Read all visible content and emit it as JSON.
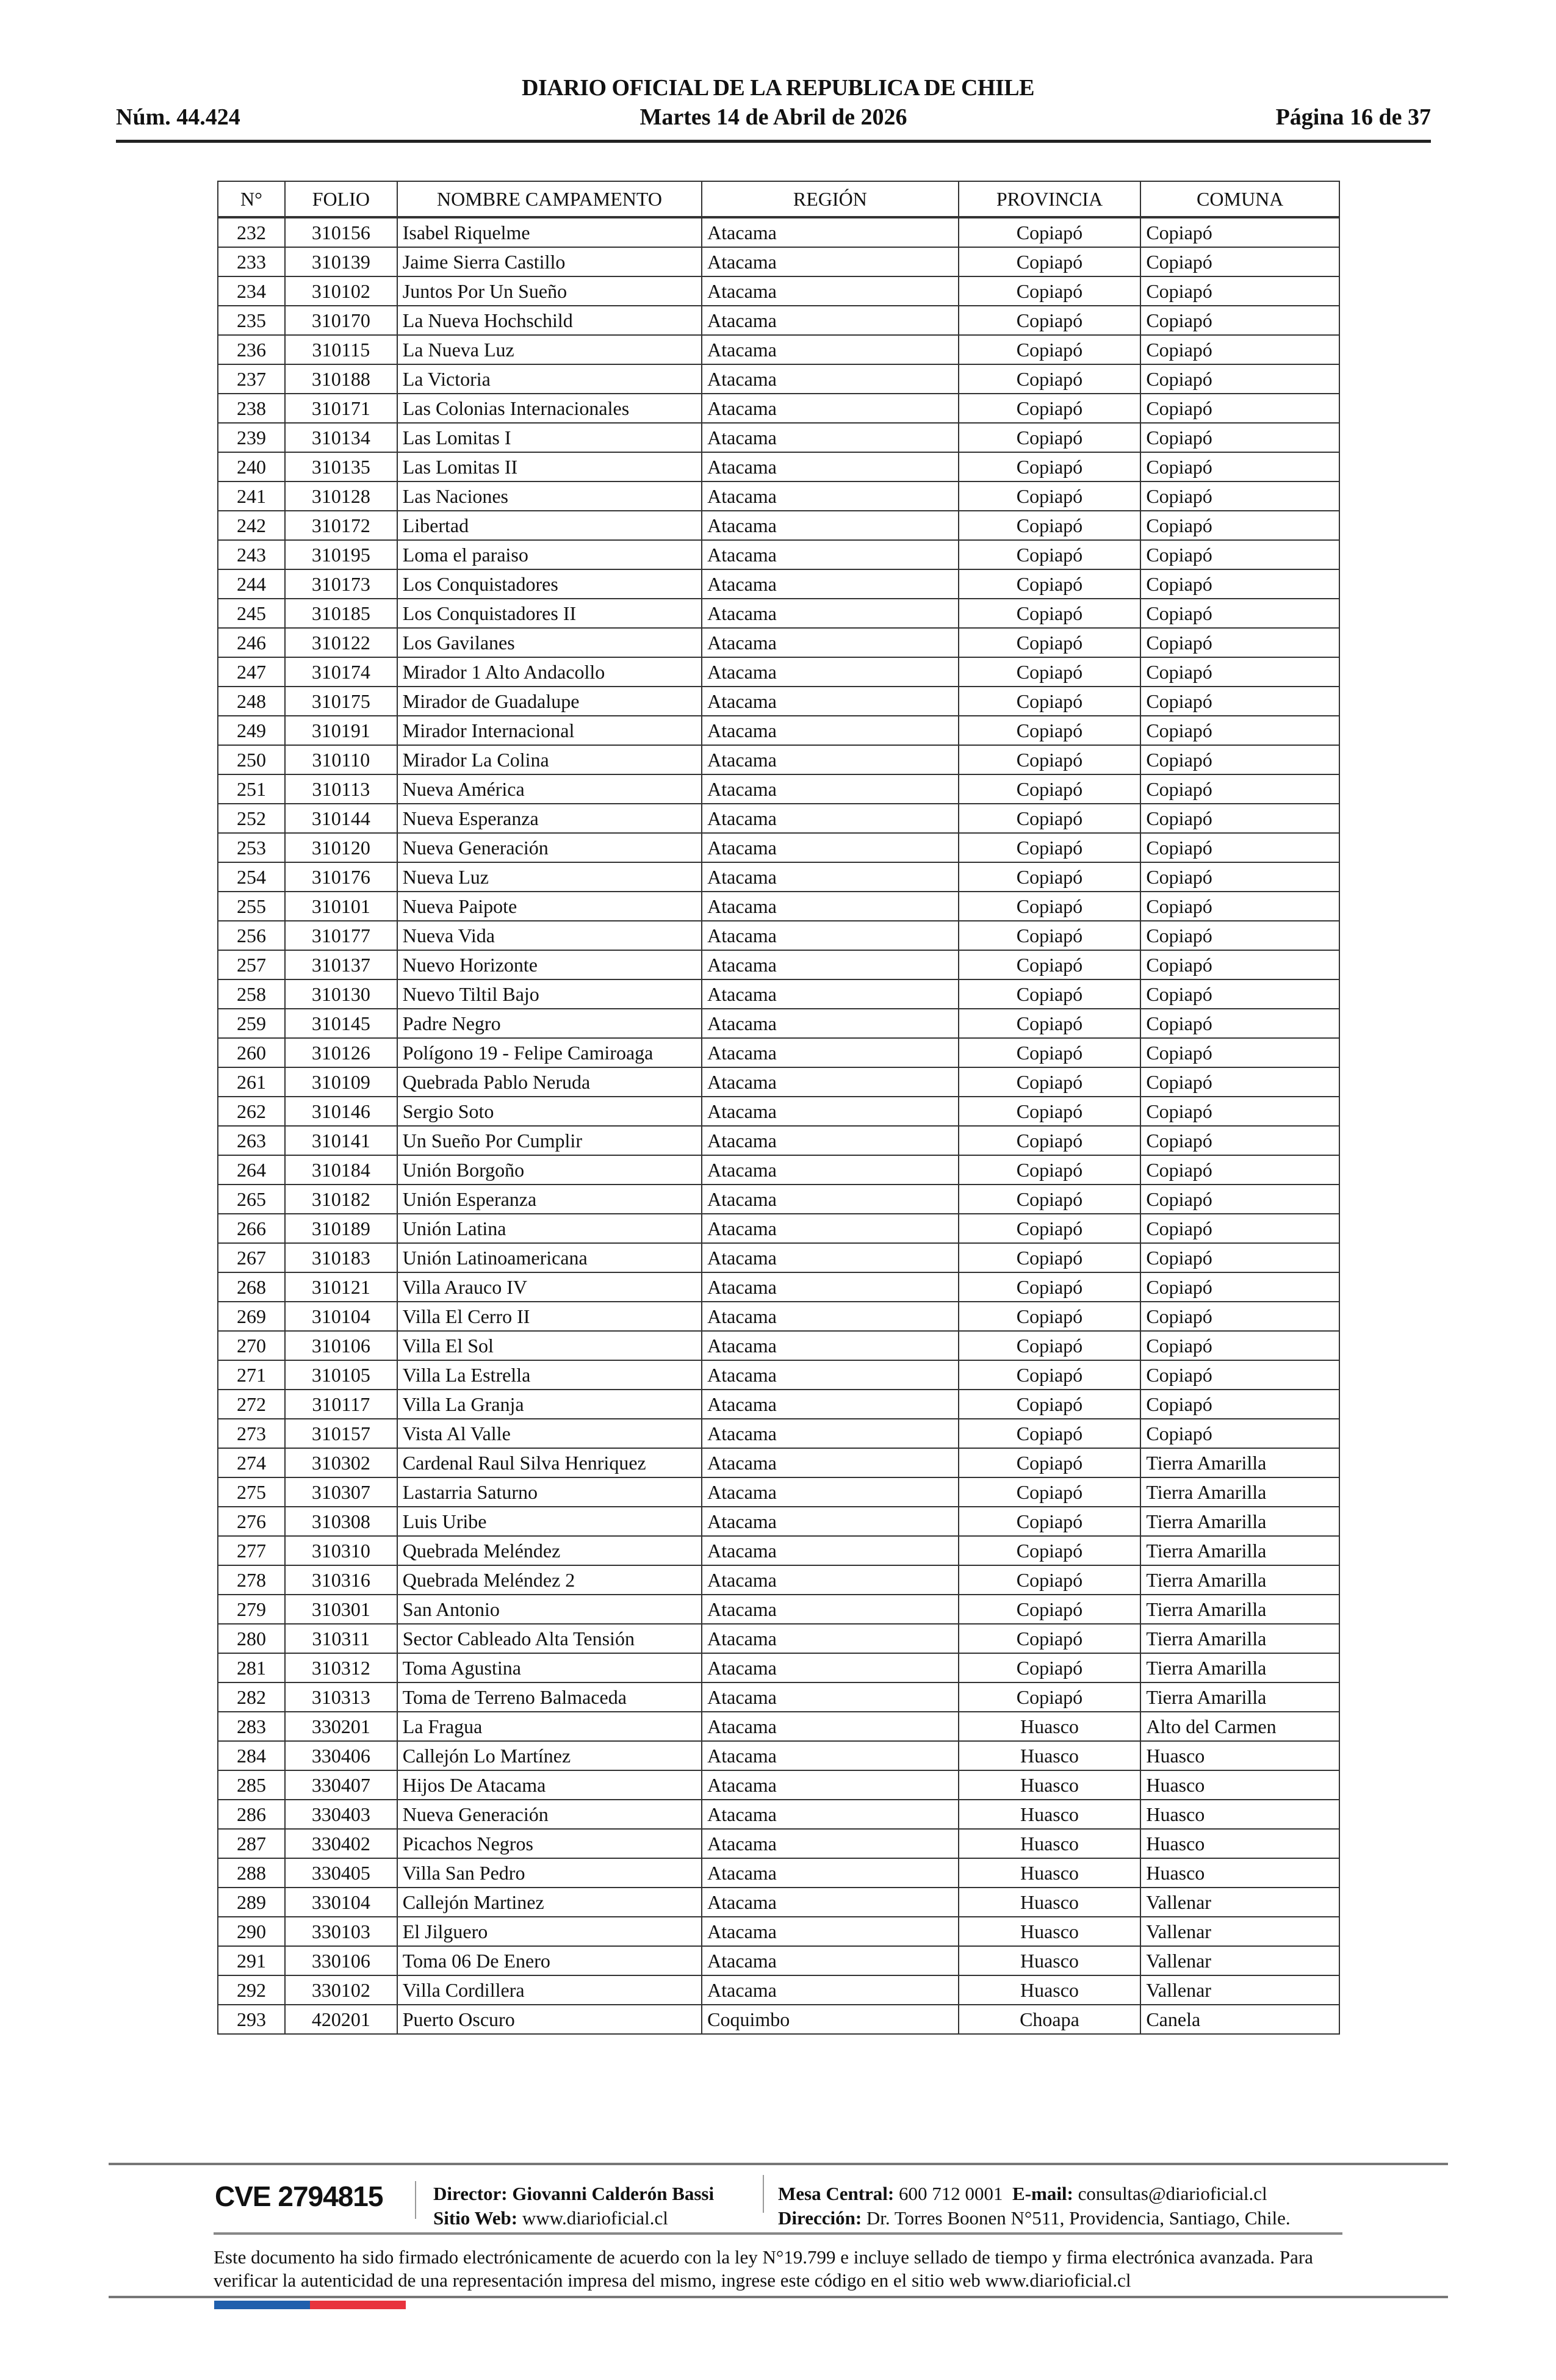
{
  "header": {
    "title": "DIARIO OFICIAL DE LA REPUBLICA DE CHILE",
    "issue": "Núm. 44.424",
    "date": "Martes 14 de Abril de 2026",
    "page": "Página 16 de 37"
  },
  "table": {
    "columns": [
      "N°",
      "FOLIO",
      "NOMBRE CAMPAMENTO",
      "REGIÓN",
      "PROVINCIA",
      "COMUNA"
    ],
    "rows": [
      [
        "232",
        "310156",
        "Isabel Riquelme",
        "Atacama",
        "Copiapó",
        "Copiapó"
      ],
      [
        "233",
        "310139",
        "Jaime Sierra Castillo",
        "Atacama",
        "Copiapó",
        "Copiapó"
      ],
      [
        "234",
        "310102",
        "Juntos Por Un Sueño",
        "Atacama",
        "Copiapó",
        "Copiapó"
      ],
      [
        "235",
        "310170",
        "La Nueva Hochschild",
        "Atacama",
        "Copiapó",
        "Copiapó"
      ],
      [
        "236",
        "310115",
        "La Nueva Luz",
        "Atacama",
        "Copiapó",
        "Copiapó"
      ],
      [
        "237",
        "310188",
        "La Victoria",
        "Atacama",
        "Copiapó",
        "Copiapó"
      ],
      [
        "238",
        "310171",
        "Las Colonias Internacionales",
        "Atacama",
        "Copiapó",
        "Copiapó"
      ],
      [
        "239",
        "310134",
        "Las Lomitas I",
        "Atacama",
        "Copiapó",
        "Copiapó"
      ],
      [
        "240",
        "310135",
        "Las Lomitas II",
        "Atacama",
        "Copiapó",
        "Copiapó"
      ],
      [
        "241",
        "310128",
        "Las Naciones",
        "Atacama",
        "Copiapó",
        "Copiapó"
      ],
      [
        "242",
        "310172",
        "Libertad",
        "Atacama",
        "Copiapó",
        "Copiapó"
      ],
      [
        "243",
        "310195",
        "Loma el paraiso",
        "Atacama",
        "Copiapó",
        "Copiapó"
      ],
      [
        "244",
        "310173",
        "Los Conquistadores",
        "Atacama",
        "Copiapó",
        "Copiapó"
      ],
      [
        "245",
        "310185",
        "Los Conquistadores II",
        "Atacama",
        "Copiapó",
        "Copiapó"
      ],
      [
        "246",
        "310122",
        "Los Gavilanes",
        "Atacama",
        "Copiapó",
        "Copiapó"
      ],
      [
        "247",
        "310174",
        "Mirador 1 Alto Andacollo",
        "Atacama",
        "Copiapó",
        "Copiapó"
      ],
      [
        "248",
        "310175",
        "Mirador de Guadalupe",
        "Atacama",
        "Copiapó",
        "Copiapó"
      ],
      [
        "249",
        "310191",
        "Mirador Internacional",
        "Atacama",
        "Copiapó",
        "Copiapó"
      ],
      [
        "250",
        "310110",
        "Mirador La Colina",
        "Atacama",
        "Copiapó",
        "Copiapó"
      ],
      [
        "251",
        "310113",
        "Nueva América",
        "Atacama",
        "Copiapó",
        "Copiapó"
      ],
      [
        "252",
        "310144",
        "Nueva Esperanza",
        "Atacama",
        "Copiapó",
        "Copiapó"
      ],
      [
        "253",
        "310120",
        "Nueva Generación",
        "Atacama",
        "Copiapó",
        "Copiapó"
      ],
      [
        "254",
        "310176",
        "Nueva Luz",
        "Atacama",
        "Copiapó",
        "Copiapó"
      ],
      [
        "255",
        "310101",
        "Nueva Paipote",
        "Atacama",
        "Copiapó",
        "Copiapó"
      ],
      [
        "256",
        "310177",
        "Nueva Vida",
        "Atacama",
        "Copiapó",
        "Copiapó"
      ],
      [
        "257",
        "310137",
        "Nuevo Horizonte",
        "Atacama",
        "Copiapó",
        "Copiapó"
      ],
      [
        "258",
        "310130",
        "Nuevo Tiltil Bajo",
        "Atacama",
        "Copiapó",
        "Copiapó"
      ],
      [
        "259",
        "310145",
        "Padre Negro",
        "Atacama",
        "Copiapó",
        "Copiapó"
      ],
      [
        "260",
        "310126",
        "Polígono 19 - Felipe Camiroaga",
        "Atacama",
        "Copiapó",
        "Copiapó"
      ],
      [
        "261",
        "310109",
        "Quebrada Pablo Neruda",
        "Atacama",
        "Copiapó",
        "Copiapó"
      ],
      [
        "262",
        "310146",
        "Sergio Soto",
        "Atacama",
        "Copiapó",
        "Copiapó"
      ],
      [
        "263",
        "310141",
        "Un Sueño Por Cumplir",
        "Atacama",
        "Copiapó",
        "Copiapó"
      ],
      [
        "264",
        "310184",
        "Unión Borgoño",
        "Atacama",
        "Copiapó",
        "Copiapó"
      ],
      [
        "265",
        "310182",
        "Unión Esperanza",
        "Atacama",
        "Copiapó",
        "Copiapó"
      ],
      [
        "266",
        "310189",
        "Unión Latina",
        "Atacama",
        "Copiapó",
        "Copiapó"
      ],
      [
        "267",
        "310183",
        "Unión Latinoamericana",
        "Atacama",
        "Copiapó",
        "Copiapó"
      ],
      [
        "268",
        "310121",
        "Villa Arauco IV",
        "Atacama",
        "Copiapó",
        "Copiapó"
      ],
      [
        "269",
        "310104",
        "Villa El Cerro II",
        "Atacama",
        "Copiapó",
        "Copiapó"
      ],
      [
        "270",
        "310106",
        "Villa El Sol",
        "Atacama",
        "Copiapó",
        "Copiapó"
      ],
      [
        "271",
        "310105",
        "Villa La Estrella",
        "Atacama",
        "Copiapó",
        "Copiapó"
      ],
      [
        "272",
        "310117",
        "Villa La Granja",
        "Atacama",
        "Copiapó",
        "Copiapó"
      ],
      [
        "273",
        "310157",
        "Vista Al Valle",
        "Atacama",
        "Copiapó",
        "Copiapó"
      ],
      [
        "274",
        "310302",
        "Cardenal Raul Silva Henriquez",
        "Atacama",
        "Copiapó",
        "Tierra Amarilla"
      ],
      [
        "275",
        "310307",
        "Lastarria Saturno",
        "Atacama",
        "Copiapó",
        "Tierra Amarilla"
      ],
      [
        "276",
        "310308",
        "Luis Uribe",
        "Atacama",
        "Copiapó",
        "Tierra Amarilla"
      ],
      [
        "277",
        "310310",
        "Quebrada Meléndez",
        "Atacama",
        "Copiapó",
        "Tierra Amarilla"
      ],
      [
        "278",
        "310316",
        "Quebrada Meléndez  2",
        "Atacama",
        "Copiapó",
        "Tierra Amarilla"
      ],
      [
        "279",
        "310301",
        "San Antonio",
        "Atacama",
        "Copiapó",
        "Tierra Amarilla"
      ],
      [
        "280",
        "310311",
        "Sector Cableado Alta Tensión",
        "Atacama",
        "Copiapó",
        "Tierra Amarilla"
      ],
      [
        "281",
        "310312",
        "Toma Agustina",
        "Atacama",
        "Copiapó",
        "Tierra Amarilla"
      ],
      [
        "282",
        "310313",
        "Toma de Terreno Balmaceda",
        "Atacama",
        "Copiapó",
        "Tierra Amarilla"
      ],
      [
        "283",
        "330201",
        "La Fragua",
        "Atacama",
        "Huasco",
        "Alto del Carmen"
      ],
      [
        "284",
        "330406",
        "Callejón Lo Martínez",
        "Atacama",
        "Huasco",
        "Huasco"
      ],
      [
        "285",
        "330407",
        "Hijos De Atacama",
        "Atacama",
        "Huasco",
        "Huasco"
      ],
      [
        "286",
        "330403",
        "Nueva Generación",
        "Atacama",
        "Huasco",
        "Huasco"
      ],
      [
        "287",
        "330402",
        "Picachos Negros",
        "Atacama",
        "Huasco",
        "Huasco"
      ],
      [
        "288",
        "330405",
        "Villa San Pedro",
        "Atacama",
        "Huasco",
        "Huasco"
      ],
      [
        "289",
        "330104",
        "Callejón Martinez",
        "Atacama",
        "Huasco",
        "Vallenar"
      ],
      [
        "290",
        "330103",
        "El Jilguero",
        "Atacama",
        "Huasco",
        "Vallenar"
      ],
      [
        "291",
        "330106",
        "Toma 06 De Enero",
        "Atacama",
        "Huasco",
        "Vallenar"
      ],
      [
        "292",
        "330102",
        "Villa Cordillera",
        "Atacama",
        "Huasco",
        "Vallenar"
      ],
      [
        "293",
        "420201",
        "Puerto Oscuro",
        "Coquimbo",
        "Choapa",
        "Canela"
      ]
    ]
  },
  "footer": {
    "cve": "CVE 2794815",
    "director_label": "Director:",
    "director": "Giovanni Calderón Bassi",
    "web_label": "Sitio Web:",
    "web": "www.diarioficial.cl",
    "phone_label": "Mesa Central:",
    "phone": "600 712 0001",
    "email_label": "E-mail:",
    "email": "consultas@diarioficial.cl",
    "address_label": "Dirección:",
    "address": "Dr. Torres Boonen N°511, Providencia, Santiago, Chile.",
    "disclaimer": "Este documento ha sido firmado electrónicamente de acuerdo con la ley N°19.799 e incluye sellado de tiempo y firma electrónica avanzada. Para verificar la autenticidad de una representación impresa del mismo, ingrese este código en el sitio web www.diarioficial.cl",
    "flag_colors": [
      "#1f5fad",
      "#e8333d"
    ]
  }
}
